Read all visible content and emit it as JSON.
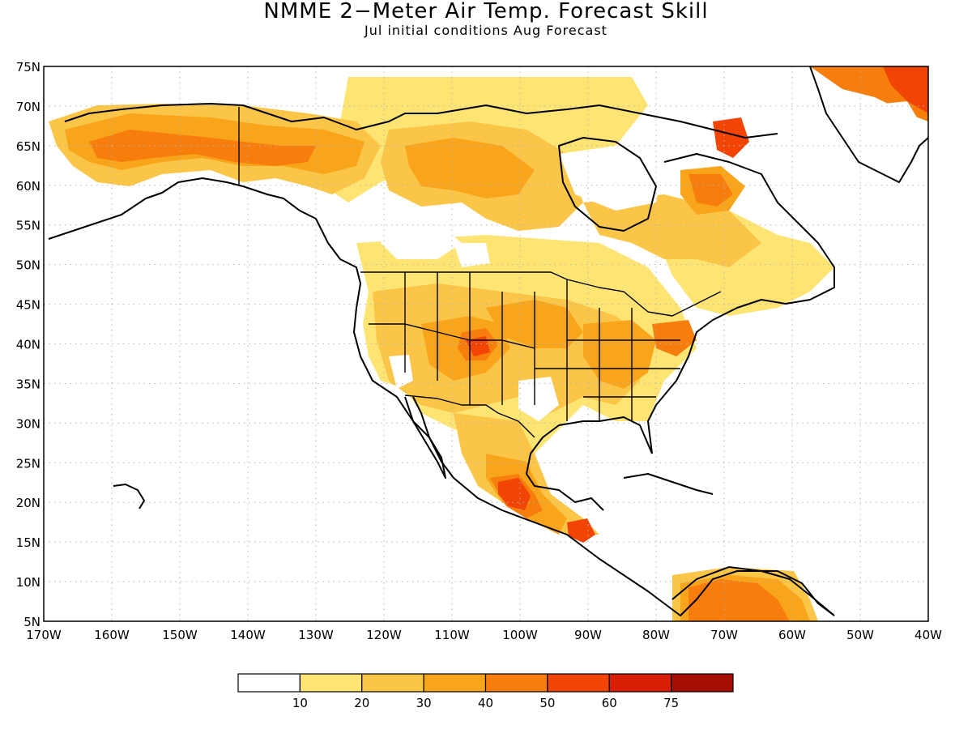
{
  "title": "NMME 2−Meter Air Temp. Forecast Skill",
  "subtitle": "Jul initial conditions   Aug Forecast",
  "map": {
    "lon_range": [
      -170,
      -40
    ],
    "lat_range": [
      5,
      75
    ],
    "x_ticks": [
      "170W",
      "160W",
      "150W",
      "140W",
      "130W",
      "120W",
      "110W",
      "100W",
      "90W",
      "80W",
      "70W",
      "60W",
      "50W",
      "40W"
    ],
    "y_ticks": [
      "5N",
      "10N",
      "15N",
      "20N",
      "25N",
      "30N",
      "35N",
      "40N",
      "45N",
      "50N",
      "55N",
      "60N",
      "65N",
      "70N",
      "75N"
    ],
    "gridlines": "dotted"
  },
  "colorbar": {
    "labels": [
      "10",
      "20",
      "30",
      "40",
      "50",
      "60",
      "75"
    ],
    "colors": [
      "#ffffff",
      "#fee472",
      "#fbc547",
      "#f9a51c",
      "#f77d0c",
      "#f24505",
      "#d91e06",
      "#a60e04"
    ]
  }
}
